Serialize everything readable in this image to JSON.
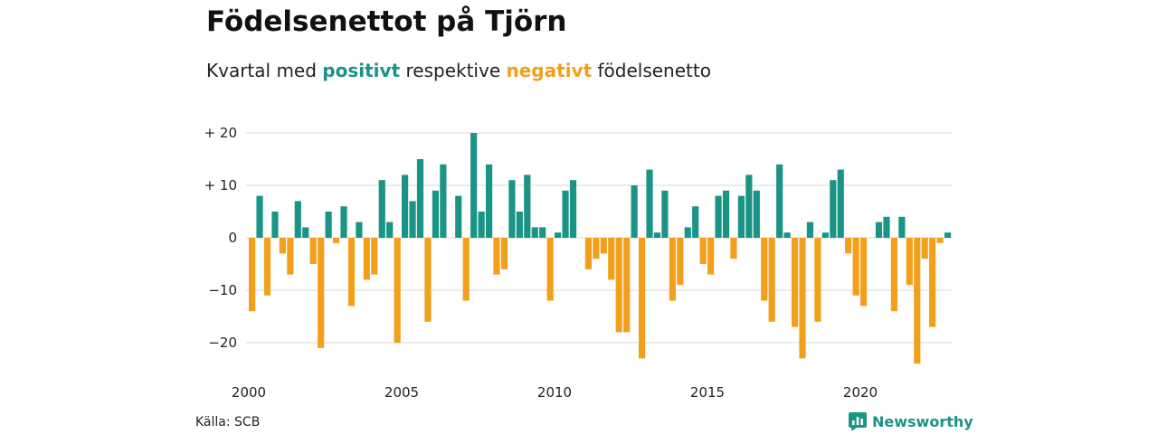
{
  "header": {
    "title": "Födelsenettot på Tjörn",
    "subtitle_pre": "Kvartal med",
    "subtitle_pos": "positivt",
    "subtitle_mid": "respektive",
    "subtitle_neg": "negativt",
    "subtitle_post": "födelsenetto"
  },
  "footer": {
    "source": "Källa: SCB",
    "brand": "Newsworthy"
  },
  "colors": {
    "positive": "#1a9484",
    "negative": "#f2a01c",
    "grid": "#d9d9d9"
  },
  "chart_data": {
    "type": "bar",
    "ylim": [
      -25,
      22
    ],
    "yticks": [
      {
        "value": 20,
        "label": "+ 20"
      },
      {
        "value": 10,
        "label": "+ 10"
      },
      {
        "value": 0,
        "label": "0"
      },
      {
        "value": -10,
        "label": "−10"
      },
      {
        "value": -20,
        "label": "−20"
      }
    ],
    "xticks": [
      "2000",
      "2005",
      "2010",
      "2015",
      "2020"
    ],
    "x_start": "2000",
    "values": [
      -14,
      8,
      -11,
      5,
      -3,
      -7,
      7,
      2,
      -5,
      -21,
      5,
      -1,
      6,
      -13,
      3,
      -8,
      -7,
      11,
      3,
      -20,
      12,
      7,
      15,
      -16,
      9,
      14,
      0,
      8,
      -12,
      20,
      5,
      14,
      -7,
      -6,
      11,
      5,
      12,
      2,
      2,
      -12,
      1,
      9,
      11,
      0,
      -6,
      -4,
      -3,
      -8,
      -18,
      -18,
      10,
      -23,
      13,
      1,
      9,
      -12,
      -9,
      2,
      6,
      -5,
      -7,
      8,
      9,
      -4,
      8,
      12,
      9,
      -12,
      -16,
      14,
      1,
      -17,
      -23,
      3,
      -16,
      1,
      11,
      13,
      -3,
      -11,
      -13,
      0,
      3,
      4,
      -14,
      4,
      -9,
      -24,
      -4,
      -17,
      -1,
      1
    ]
  }
}
